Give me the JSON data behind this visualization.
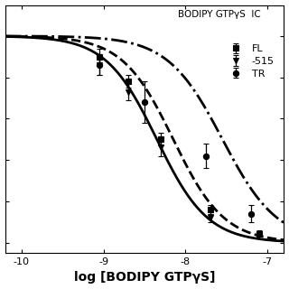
{
  "title": "BODIPY GTPγS  IC",
  "xlabel": "log [BODIPY GTPγS]",
  "xlim": [
    -10.2,
    -6.8
  ],
  "ylim": [
    -0.05,
    1.15
  ],
  "xticks": [
    -10,
    -9,
    -8,
    -7
  ],
  "series": {
    "FL": {
      "ec50_log": -8.35,
      "hill": 1.4,
      "line_style": "-",
      "marker": "s",
      "lw": 2.0,
      "data_x": [
        -9.05,
        -8.7,
        -8.3,
        -7.7,
        -7.1
      ],
      "data_y": [
        0.9,
        0.78,
        0.5,
        0.16,
        0.04
      ],
      "data_yerr": [
        0.04,
        0.03,
        0.03,
        0.02,
        0.02
      ],
      "label": "FL"
    },
    "515": {
      "ec50_log": -8.15,
      "hill": 1.4,
      "line_style": "--",
      "marker": "v",
      "lw": 2.0,
      "data_x": [
        -9.05,
        -8.7,
        -8.3,
        -7.7
      ],
      "data_y": [
        0.86,
        0.73,
        0.46,
        0.12
      ],
      "data_yerr": [
        0.05,
        0.04,
        0.04,
        0.02
      ],
      "label": "-515"
    },
    "TR": {
      "ec50_log": -7.55,
      "hill": 1.3,
      "line_style": "-.",
      "marker": "o",
      "lw": 2.0,
      "data_x": [
        -9.05,
        -8.5,
        -7.75,
        -7.2
      ],
      "data_y": [
        0.86,
        0.68,
        0.42,
        0.14
      ],
      "data_yerr": [
        0.05,
        0.1,
        0.06,
        0.04
      ],
      "label": "TR"
    }
  },
  "color": "black",
  "background_color": "#ffffff",
  "ms": 4.5,
  "capsize": 2,
  "elinewidth": 0.9,
  "yticks": [
    0.0,
    0.2,
    0.4,
    0.6,
    0.8,
    1.0
  ],
  "tick_fontsize": 8,
  "xlabel_fontsize": 10,
  "legend_fontsize": 8
}
